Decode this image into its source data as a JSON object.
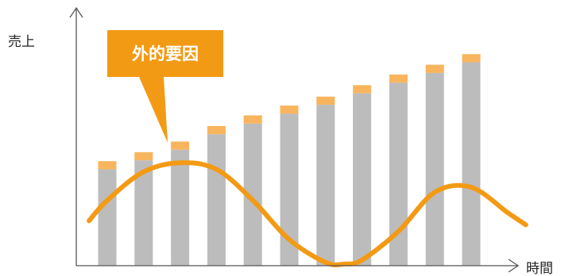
{
  "chart_data": {
    "type": "bar",
    "title": "",
    "ylabel": "売上",
    "xlabel": "時間",
    "annotation": "外的要因",
    "categories": [
      "",
      "",
      "",
      "",
      "",
      "",
      "",
      "",
      "",
      "",
      ""
    ],
    "series": [
      {
        "values": [
          11.8,
          12.9,
          14.2,
          16.1,
          17.4,
          18.6,
          19.7,
          21.1,
          22.4,
          23.6,
          24.9
        ]
      },
      {
        "values": [
          1.0,
          1.0,
          1.0,
          1.0,
          1.0,
          1.0,
          1.0,
          1.0,
          1.0,
          1.0,
          1.0
        ]
      }
    ],
    "ylim": [
      0,
      30
    ],
    "wave_curve": {
      "x": [
        -0.5,
        0.0,
        1.0,
        2.0,
        3.0,
        4.0,
        5.0,
        6.0,
        6.5,
        7.0,
        8.0,
        9.0,
        10.0,
        11.0,
        11.5
      ],
      "y": [
        5.5,
        8.0,
        11.5,
        12.6,
        11.8,
        8.0,
        3.2,
        0.4,
        0.2,
        0.7,
        4.2,
        9.0,
        9.6,
        6.5,
        5.0
      ]
    },
    "colors": {
      "base": "#bcbcbc",
      "cap": "#f8b55e",
      "wave": "#f39a14",
      "callout": "#f39a14",
      "axis": "#555555"
    },
    "grid": false,
    "legend": "none"
  }
}
